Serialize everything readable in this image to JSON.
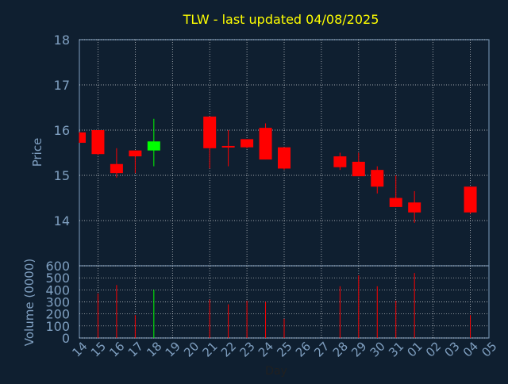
{
  "chart_data": {
    "type": "candlestick",
    "title": "TLW - last updated 04/08/2025",
    "xlabel": "Day",
    "grid": true,
    "colors": {
      "background": "#0f1f30",
      "axes": "#7f9fc0",
      "title": "#ffff00",
      "up": "#00ff00",
      "down": "#ff0000",
      "grid": "#ffffff"
    },
    "x_ticks": [
      "14",
      "15",
      "16",
      "17",
      "18",
      "19",
      "20",
      "21",
      "22",
      "23",
      "24",
      "25",
      "26",
      "27",
      "28",
      "29",
      "30",
      "31",
      "01",
      "02",
      "03",
      "04",
      "05"
    ],
    "price_panel": {
      "ylabel": "Price",
      "ylim": [
        13,
        18
      ],
      "yticks": [
        "14",
        "15",
        "16",
        "17",
        "18"
      ]
    },
    "volume_panel": {
      "ylabel": "Volume (0000)",
      "ylim": [
        0,
        600
      ],
      "yticks": [
        "0",
        "100",
        "200",
        "300",
        "400",
        "500",
        "600"
      ]
    },
    "candles": [
      {
        "day": "14",
        "open": 15.95,
        "high": 15.95,
        "low": 15.72,
        "close": 15.72
      },
      {
        "day": "15",
        "open": 16.0,
        "high": 16.0,
        "low": 15.45,
        "close": 15.47
      },
      {
        "day": "16",
        "open": 15.25,
        "high": 15.6,
        "low": 14.95,
        "close": 15.05
      },
      {
        "day": "17",
        "open": 15.55,
        "high": 15.55,
        "low": 15.05,
        "close": 15.42
      },
      {
        "day": "18",
        "open": 15.55,
        "high": 16.25,
        "low": 15.2,
        "close": 15.75
      },
      {
        "day": "21",
        "open": 16.3,
        "high": 16.3,
        "low": 15.15,
        "close": 15.6
      },
      {
        "day": "22",
        "open": 15.65,
        "high": 16.0,
        "low": 15.2,
        "close": 15.62
      },
      {
        "day": "23",
        "open": 15.8,
        "high": 15.8,
        "low": 15.6,
        "close": 15.62
      },
      {
        "day": "24",
        "open": 16.05,
        "high": 16.15,
        "low": 15.35,
        "close": 15.35
      },
      {
        "day": "25",
        "open": 15.62,
        "high": 15.62,
        "low": 15.12,
        "close": 15.15
      },
      {
        "day": "28",
        "open": 15.42,
        "high": 15.5,
        "low": 15.12,
        "close": 15.18
      },
      {
        "day": "29",
        "open": 15.3,
        "high": 15.5,
        "low": 14.98,
        "close": 14.98
      },
      {
        "day": "30",
        "open": 15.12,
        "high": 15.2,
        "low": 14.6,
        "close": 14.75
      },
      {
        "day": "31",
        "open": 14.5,
        "high": 15.0,
        "low": 14.3,
        "close": 14.3
      },
      {
        "day": "01",
        "open": 14.4,
        "high": 14.65,
        "low": 13.95,
        "close": 14.18
      },
      {
        "day": "04",
        "open": 14.75,
        "high": 14.75,
        "low": 14.15,
        "close": 14.18
      }
    ],
    "volume": [
      {
        "day": "14",
        "value": 0
      },
      {
        "day": "15",
        "value": 370
      },
      {
        "day": "16",
        "value": 440
      },
      {
        "day": "17",
        "value": 190
      },
      {
        "day": "18",
        "value": 400
      },
      {
        "day": "21",
        "value": 320
      },
      {
        "day": "22",
        "value": 280
      },
      {
        "day": "23",
        "value": 310
      },
      {
        "day": "24",
        "value": 300
      },
      {
        "day": "25",
        "value": 160
      },
      {
        "day": "28",
        "value": 430
      },
      {
        "day": "29",
        "value": 520
      },
      {
        "day": "30",
        "value": 430
      },
      {
        "day": "31",
        "value": 310
      },
      {
        "day": "01",
        "value": 540
      },
      {
        "day": "04",
        "value": 190
      }
    ]
  }
}
